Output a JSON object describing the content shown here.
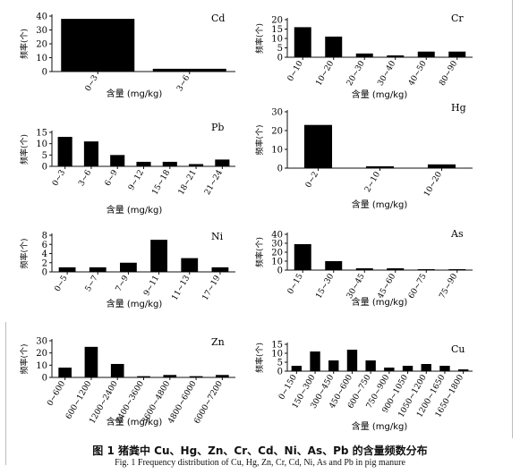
{
  "figure": {
    "caption_cn": "图 1   猪粪中 Cu、Hg、Zn、Cr、Cd、Ni、As、Pb 的含量频数分布",
    "caption_en": "Fig. 1   Frequency distribution of Cu, Hg, Zn, Cr, Cd, Ni, As and Pb in pig manure"
  },
  "chart_data": [
    {
      "id": "cd",
      "type": "bar",
      "title": "Cd",
      "ylabel": "频率(个)",
      "xlabel": "含量 (mg/kg)",
      "ylim": [
        0,
        40
      ],
      "yticks": [
        0,
        10,
        20,
        30,
        40
      ],
      "categories": [
        "0~3",
        "3~6"
      ],
      "values": [
        38,
        2
      ]
    },
    {
      "id": "cr",
      "type": "bar",
      "title": "Cr",
      "ylabel": "频率(个)",
      "xlabel": "含量 (mg/kg)",
      "ylim": [
        0,
        20
      ],
      "yticks": [
        0,
        5,
        10,
        15,
        20
      ],
      "categories": [
        "0~10",
        "10~20",
        "20~30",
        "30~40",
        "40~50",
        "80~90"
      ],
      "values": [
        16,
        11,
        2,
        1,
        3,
        3
      ]
    },
    {
      "id": "pb",
      "type": "bar",
      "title": "Pb",
      "ylabel": "频率(个)",
      "xlabel": "含量 (mg/kg)",
      "ylim": [
        0,
        15
      ],
      "yticks": [
        0,
        5,
        10,
        15
      ],
      "categories": [
        "0~3",
        "3~6",
        "6~9",
        "9~12",
        "15~18",
        "18~21",
        "21~24"
      ],
      "values": [
        13,
        11,
        5,
        2,
        2,
        1,
        3
      ]
    },
    {
      "id": "hg",
      "type": "bar",
      "title": "Hg",
      "ylabel": "频率(个)",
      "xlabel": "含量 (mg/kg)",
      "ylim": [
        0,
        30
      ],
      "yticks": [
        0,
        10,
        20,
        30
      ],
      "categories": [
        "0~2",
        "2~10",
        "10~20"
      ],
      "values": [
        23,
        1,
        2
      ]
    },
    {
      "id": "ni",
      "type": "bar",
      "title": "Ni",
      "ylabel": "频率(个)",
      "xlabel": "含量 (mg/kg)",
      "ylim": [
        0,
        8
      ],
      "yticks": [
        0,
        2,
        4,
        6,
        8
      ],
      "categories": [
        "0~5",
        "5~7",
        "7~9",
        "9~11",
        "11~13",
        "17~19"
      ],
      "values": [
        1,
        1,
        2,
        7,
        3,
        1
      ]
    },
    {
      "id": "as",
      "type": "bar",
      "title": "As",
      "ylabel": "频率(个)",
      "xlabel": "含量 (mg/kg)",
      "ylim": [
        0,
        40
      ],
      "yticks": [
        0,
        10,
        20,
        30,
        40
      ],
      "categories": [
        "0~15",
        "15~30",
        "30~45",
        "45~60",
        "60~75",
        "75~90"
      ],
      "values": [
        29,
        10,
        2,
        2,
        1,
        1
      ]
    },
    {
      "id": "zn",
      "type": "bar",
      "title": "Zn",
      "ylabel": "频率(个)",
      "xlabel": "含量 (mg/kg)",
      "ylim": [
        0,
        30
      ],
      "yticks": [
        0,
        10,
        20,
        30
      ],
      "categories": [
        "0~600",
        "600~1200",
        "1200~2400",
        "2400~3600",
        "3600~4800",
        "4800~6000",
        "6000~7200"
      ],
      "values": [
        8,
        25,
        11,
        1,
        2,
        1,
        2
      ]
    },
    {
      "id": "cu",
      "type": "bar",
      "title": "Cu",
      "ylabel": "频率(个)",
      "xlabel": "含量 (mg/kg)",
      "ylim": [
        0,
        15
      ],
      "yticks": [
        0,
        5,
        10,
        15
      ],
      "categories": [
        "0~150",
        "150~300",
        "300~450",
        "450~600",
        "600~750",
        "750~900",
        "900~1050",
        "1050~1200",
        "1200~1650",
        "1650~1800"
      ],
      "values": [
        3,
        11,
        6,
        12,
        6,
        2,
        3,
        4,
        3,
        1
      ]
    }
  ]
}
